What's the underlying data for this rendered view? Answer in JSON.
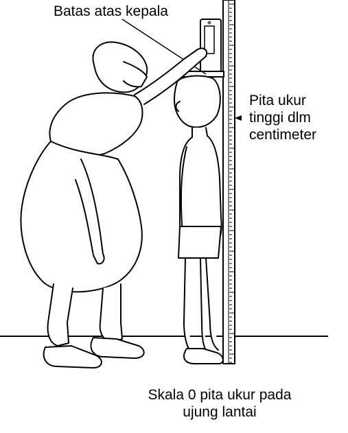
{
  "labels": {
    "headboard": "Batas atas kepala",
    "tape_line1": "Pita ukur",
    "tape_line2": "tinggi dlm",
    "tape_line3": "centimeter",
    "zero_line1": "Skala 0 pita ukur pada",
    "zero_line2": "ujung lantai"
  },
  "colors": {
    "ink": "#000000",
    "background": "#ffffff",
    "accent": "#2a6fb0"
  }
}
